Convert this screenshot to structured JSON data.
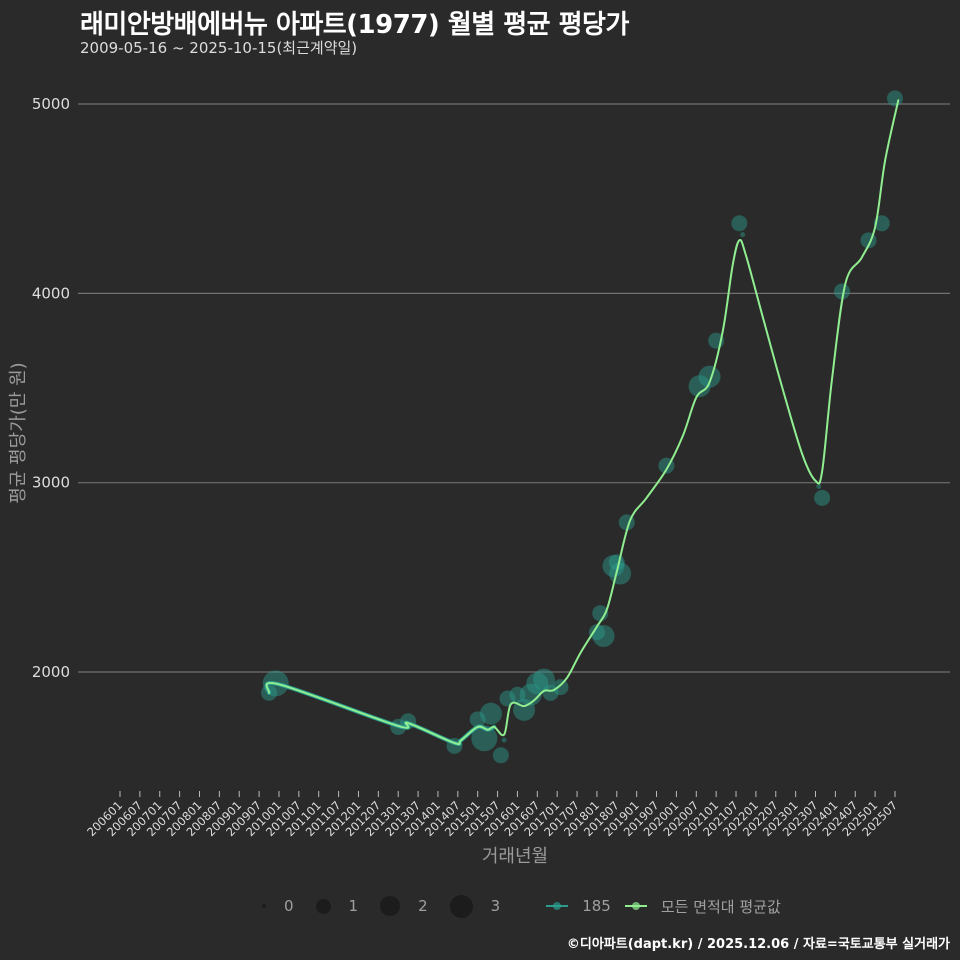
{
  "header": {
    "title": "래미안방배에버뉴 아파트(1977) 월별 평균 평당가",
    "subtitle": "2009-05-16 ~ 2025-10-15(최근계약일)"
  },
  "axes": {
    "y_title": "평균 평당가(만 원)",
    "x_title": "거래년월"
  },
  "caption": "©디아파트(dapt.kr) / 2025.12.06 / 자료=국토교통부 실거래가",
  "legend": {
    "size_items": [
      {
        "label": "0",
        "diameter": 4
      },
      {
        "label": "1",
        "diameter": 14
      },
      {
        "label": "2",
        "diameter": 20
      },
      {
        "label": "3",
        "diameter": 24
      }
    ],
    "line_items": [
      {
        "label": "185",
        "color": "#2a9d8f"
      },
      {
        "label": "모든 면적대 평균값",
        "color": "#90ee90"
      }
    ]
  },
  "colors": {
    "background": "#2a2a2b",
    "grid": "#707070",
    "point_fill": "#2a9d8f",
    "area_line": "#2a9d8f",
    "all_line": "#90ee90"
  },
  "chart_data": {
    "type": "line",
    "title": "래미안방배에버뉴 아파트(1977) 월별 평균 평당가",
    "subtitle": "2009-05-16 ~ 2025-10-15(최근계약일)",
    "xlabel": "거래년월",
    "ylabel": "평균 평당가(만 원)",
    "ylim": [
      1350,
      5300
    ],
    "yticks": [
      2000,
      3000,
      4000,
      5000
    ],
    "grid": true,
    "legend_position": "bottom",
    "x_tick_labels": [
      "200601",
      "200607",
      "200701",
      "200707",
      "200801",
      "200807",
      "200901",
      "200907",
      "201001",
      "201007",
      "201101",
      "201107",
      "201201",
      "201207",
      "201301",
      "201307",
      "201401",
      "201407",
      "201501",
      "201507",
      "201601",
      "201607",
      "201701",
      "201707",
      "201801",
      "201807",
      "201901",
      "201907",
      "202001",
      "202007",
      "202101",
      "202107",
      "202201",
      "202207",
      "202301",
      "202307",
      "202401",
      "202407",
      "202501",
      "202507"
    ],
    "series": [
      {
        "name": "185",
        "kind": "scatter",
        "points": [
          {
            "x": "2009-10",
            "y": 1890,
            "size": 1
          },
          {
            "x": "2009-12",
            "y": 1940,
            "size": 3
          },
          {
            "x": "2013-01",
            "y": 1710,
            "size": 1
          },
          {
            "x": "2013-04",
            "y": 1740,
            "size": 1
          },
          {
            "x": "2014-06",
            "y": 1610,
            "size": 1
          },
          {
            "x": "2015-01",
            "y": 1750,
            "size": 1
          },
          {
            "x": "2015-03",
            "y": 1650,
            "size": 3
          },
          {
            "x": "2015-05",
            "y": 1780,
            "size": 2
          },
          {
            "x": "2015-08",
            "y": 1560,
            "size": 1
          },
          {
            "x": "2015-09",
            "y": 1640,
            "size": 0
          },
          {
            "x": "2015-10",
            "y": 1860,
            "size": 1
          },
          {
            "x": "2016-01",
            "y": 1880,
            "size": 1
          },
          {
            "x": "2016-03",
            "y": 1800,
            "size": 2
          },
          {
            "x": "2016-05",
            "y": 1880,
            "size": 2
          },
          {
            "x": "2016-07",
            "y": 1940,
            "size": 2
          },
          {
            "x": "2016-09",
            "y": 1960,
            "size": 2
          },
          {
            "x": "2016-11",
            "y": 1890,
            "size": 1
          },
          {
            "x": "2017-02",
            "y": 1920,
            "size": 1
          },
          {
            "x": "2018-01",
            "y": 2210,
            "size": 1
          },
          {
            "x": "2018-02",
            "y": 2310,
            "size": 1
          },
          {
            "x": "2018-03",
            "y": 2190,
            "size": 2
          },
          {
            "x": "2018-06",
            "y": 2560,
            "size": 2
          },
          {
            "x": "2018-07",
            "y": 2580,
            "size": 1
          },
          {
            "x": "2018-08",
            "y": 2520,
            "size": 2
          },
          {
            "x": "2018-10",
            "y": 2790,
            "size": 1
          },
          {
            "x": "2019-10",
            "y": 3090,
            "size": 1
          },
          {
            "x": "2020-08",
            "y": 3510,
            "size": 2
          },
          {
            "x": "2020-11",
            "y": 3560,
            "size": 2
          },
          {
            "x": "2021-01",
            "y": 3750,
            "size": 1
          },
          {
            "x": "2021-08",
            "y": 4370,
            "size": 1
          },
          {
            "x": "2021-09",
            "y": 4310,
            "size": 0
          },
          {
            "x": "2023-09",
            "y": 2920,
            "size": 1
          },
          {
            "x": "2023-08",
            "y": 2980,
            "size": 0
          },
          {
            "x": "2024-03",
            "y": 4010,
            "size": 1
          },
          {
            "x": "2024-11",
            "y": 4280,
            "size": 1
          },
          {
            "x": "2025-03",
            "y": 4370,
            "size": 1
          },
          {
            "x": "2025-07",
            "y": 5030,
            "size": 1
          }
        ]
      },
      {
        "name": "185 (smoothed line)",
        "kind": "line",
        "color": "#2a9d8f",
        "points": [
          {
            "x": "2009-10",
            "y": 1890
          },
          {
            "x": "2010-01",
            "y": 1935
          },
          {
            "x": "2013-01",
            "y": 1715
          },
          {
            "x": "2013-04",
            "y": 1730
          },
          {
            "x": "2014-06",
            "y": 1625
          },
          {
            "x": "2014-08",
            "y": 1640
          },
          {
            "x": "2015-01",
            "y": 1710
          },
          {
            "x": "2015-04",
            "y": 1695
          },
          {
            "x": "2015-06",
            "y": 1710
          }
        ]
      },
      {
        "name": "모든 면적대 평균값",
        "kind": "line",
        "color": "#90ee90",
        "points": [
          {
            "x": "2009-10",
            "y": 1890
          },
          {
            "x": "2010-01",
            "y": 1935
          },
          {
            "x": "2013-01",
            "y": 1715
          },
          {
            "x": "2013-04",
            "y": 1730
          },
          {
            "x": "2014-06",
            "y": 1625
          },
          {
            "x": "2014-08",
            "y": 1640
          },
          {
            "x": "2015-01",
            "y": 1710
          },
          {
            "x": "2015-04",
            "y": 1695
          },
          {
            "x": "2015-06",
            "y": 1710
          },
          {
            "x": "2015-09",
            "y": 1670
          },
          {
            "x": "2015-11",
            "y": 1830
          },
          {
            "x": "2016-03",
            "y": 1820
          },
          {
            "x": "2016-06",
            "y": 1850
          },
          {
            "x": "2016-09",
            "y": 1900
          },
          {
            "x": "2016-12",
            "y": 1905
          },
          {
            "x": "2017-04",
            "y": 1970
          },
          {
            "x": "2017-08",
            "y": 2100
          },
          {
            "x": "2018-01",
            "y": 2240
          },
          {
            "x": "2018-04",
            "y": 2330
          },
          {
            "x": "2018-07",
            "y": 2530
          },
          {
            "x": "2018-11",
            "y": 2800
          },
          {
            "x": "2019-04",
            "y": 2920
          },
          {
            "x": "2019-10",
            "y": 3070
          },
          {
            "x": "2020-03",
            "y": 3250
          },
          {
            "x": "2020-07",
            "y": 3450
          },
          {
            "x": "2020-11",
            "y": 3530
          },
          {
            "x": "2021-03",
            "y": 3800
          },
          {
            "x": "2021-06",
            "y": 4150
          },
          {
            "x": "2021-08",
            "y": 4280
          },
          {
            "x": "2021-10",
            "y": 4200
          },
          {
            "x": "2022-03",
            "y": 3880
          },
          {
            "x": "2022-09",
            "y": 3500
          },
          {
            "x": "2023-03",
            "y": 3150
          },
          {
            "x": "2023-07",
            "y": 3010
          },
          {
            "x": "2023-09",
            "y": 3060
          },
          {
            "x": "2023-12",
            "y": 3550
          },
          {
            "x": "2024-04",
            "y": 4050
          },
          {
            "x": "2024-09",
            "y": 4190
          },
          {
            "x": "2025-01",
            "y": 4350
          },
          {
            "x": "2025-04",
            "y": 4700
          },
          {
            "x": "2025-08",
            "y": 5020
          }
        ]
      }
    ]
  }
}
